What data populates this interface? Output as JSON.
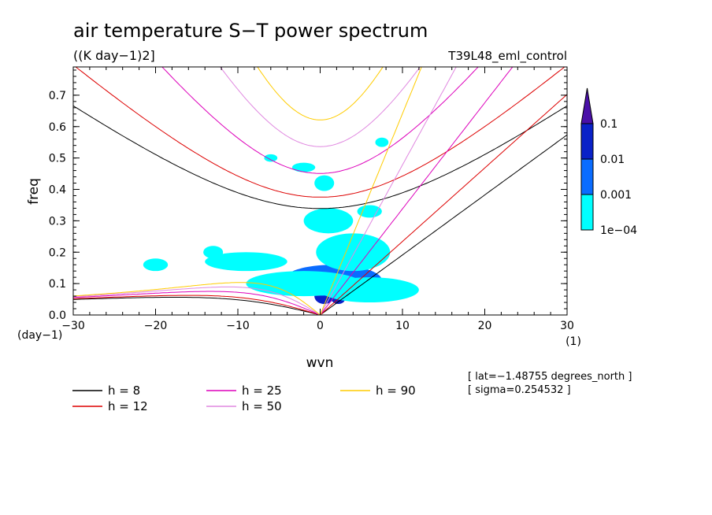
{
  "chart_data": {
    "type": "heatmap",
    "title": "air temperature S−T power spectrum",
    "units_label": "((K day−1)2]",
    "run_label": "T39L48_eml_control",
    "xlabel": "wvn",
    "ylabel": "freq",
    "x_unit_label": "(1)",
    "y_unit_label": "(day−1)",
    "xlim": [
      -30,
      30
    ],
    "ylim": [
      0,
      0.79
    ],
    "x_ticks": [
      -30,
      -20,
      -10,
      0,
      10,
      20,
      30
    ],
    "x_tick_labels": [
      "−30",
      "−20",
      "−10",
      "0",
      "10",
      "20",
      "30"
    ],
    "y_ticks": [
      0,
      0.1,
      0.2,
      0.3,
      0.4,
      0.5,
      0.6,
      0.7
    ],
    "y_tick_labels": [
      "0.0",
      "0.1",
      "0.2",
      "0.3",
      "0.4",
      "0.5",
      "0.6",
      "0.7"
    ],
    "colorbar": {
      "levels": [
        0.0001,
        0.001,
        0.01,
        0.1
      ],
      "labels": [
        "1e−04",
        "0.001",
        "0.01",
        "0.1"
      ],
      "colors": [
        "#00ffff",
        "#0a6cff",
        "#0a22c8",
        "#4a10a8"
      ]
    },
    "dispersion_curves": [
      {
        "name": "h = 8",
        "h": 8,
        "color": "#000000"
      },
      {
        "name": "h = 12",
        "h": 12,
        "color": "#dd0000"
      },
      {
        "name": "h = 25",
        "h": 25,
        "color": "#dd00bb"
      },
      {
        "name": "h = 50",
        "h": 50,
        "color": "#e088e0"
      },
      {
        "name": "h = 90",
        "h": 90,
        "color": "#ffcc00"
      }
    ],
    "legend_labels": [
      "h =  8",
      "h = 12",
      "h = 25",
      "h = 50",
      "h = 90"
    ],
    "annotations": [
      "[ lat=−1.48755 degrees_north ]",
      "[ sigma=0.254532 ]"
    ],
    "spectral_patches": [
      {
        "x": 0.5,
        "y": 0.06,
        "rx": 1.2,
        "ry": 0.025,
        "level": 2
      },
      {
        "x": -0.2,
        "y": 0.07,
        "rx": 0.5,
        "ry": 0.01,
        "level": 3
      },
      {
        "x": 2.2,
        "y": 0.05,
        "rx": 0.8,
        "ry": 0.015,
        "level": 2
      },
      {
        "x": 1.5,
        "y": 0.11,
        "rx": 6,
        "ry": 0.05,
        "level": 1
      },
      {
        "x": 4,
        "y": 0.2,
        "rx": 4.5,
        "ry": 0.06,
        "level": 0
      },
      {
        "x": -2,
        "y": 0.1,
        "rx": 7,
        "ry": 0.04,
        "level": 0
      },
      {
        "x": 6,
        "y": 0.08,
        "rx": 6,
        "ry": 0.04,
        "level": 0
      },
      {
        "x": 1,
        "y": 0.3,
        "rx": 3,
        "ry": 0.04,
        "level": 0
      },
      {
        "x": -9,
        "y": 0.17,
        "rx": 5,
        "ry": 0.03,
        "level": 0
      },
      {
        "x": 0.5,
        "y": 0.42,
        "rx": 1.2,
        "ry": 0.025,
        "level": 0
      },
      {
        "x": -2,
        "y": 0.47,
        "rx": 1.4,
        "ry": 0.015,
        "level": 0
      },
      {
        "x": 6,
        "y": 0.33,
        "rx": 1.5,
        "ry": 0.02,
        "level": 0
      },
      {
        "x": -20,
        "y": 0.16,
        "rx": 1.5,
        "ry": 0.02,
        "level": 0
      },
      {
        "x": -13,
        "y": 0.2,
        "rx": 1.2,
        "ry": 0.02,
        "level": 0
      },
      {
        "x": 7.5,
        "y": 0.55,
        "rx": 0.8,
        "ry": 0.015,
        "level": 0
      },
      {
        "x": -6,
        "y": 0.5,
        "rx": 0.8,
        "ry": 0.012,
        "level": 0
      }
    ]
  }
}
